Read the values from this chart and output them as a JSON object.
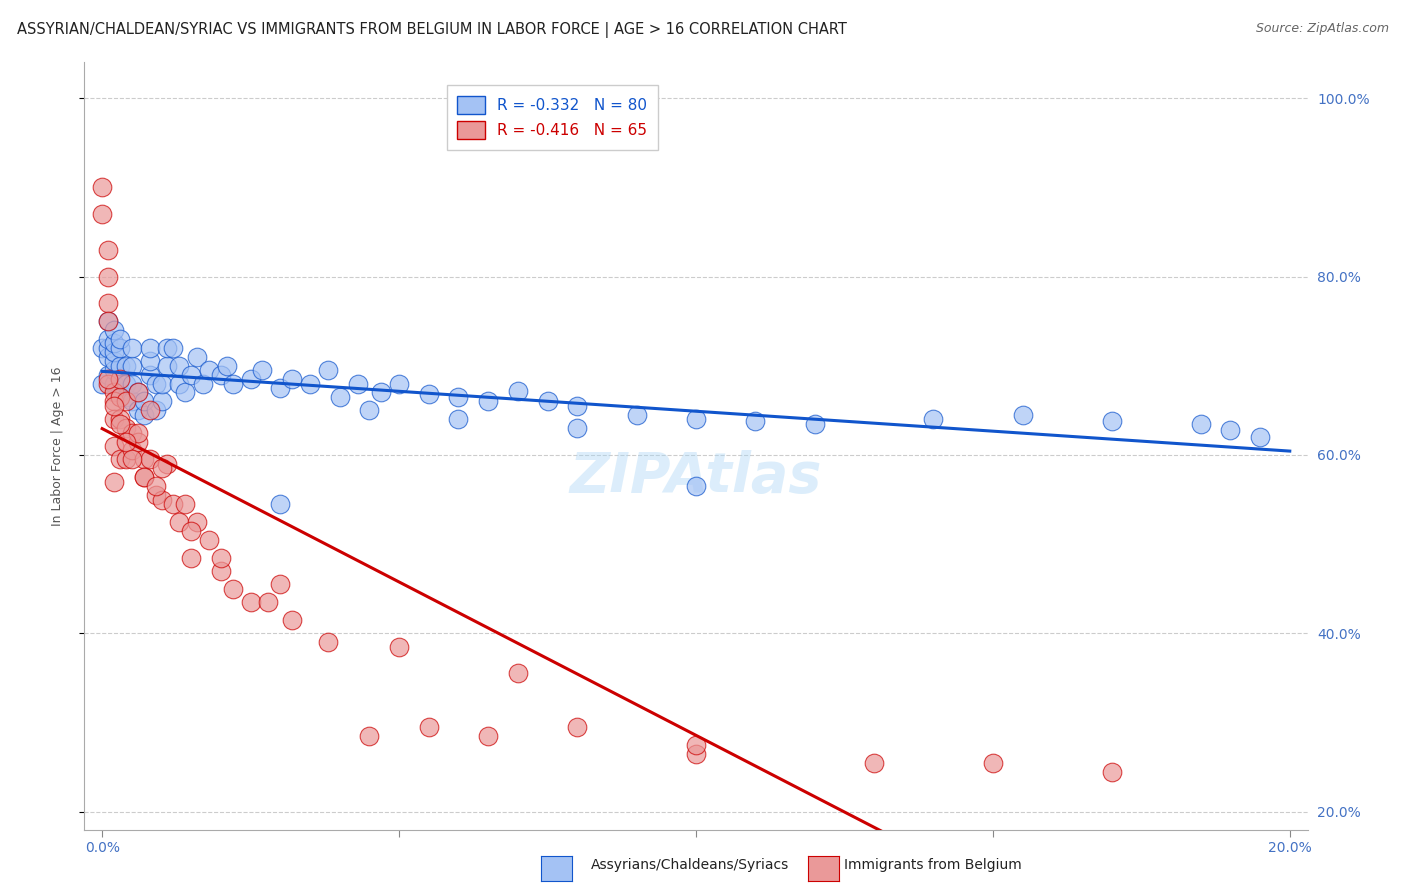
{
  "title": "ASSYRIAN/CHALDEAN/SYRIAC VS IMMIGRANTS FROM BELGIUM IN LABOR FORCE | AGE > 16 CORRELATION CHART",
  "source": "Source: ZipAtlas.com",
  "ylabel": "In Labor Force | Age > 16",
  "legend1_R": "-0.332",
  "legend1_N": "80",
  "legend2_R": "-0.416",
  "legend2_N": "65",
  "blue_color": "#a4c2f4",
  "pink_color": "#ea9999",
  "blue_line_color": "#1155cc",
  "pink_line_color": "#cc0000",
  "watermark": "ZIPAtlas",
  "blue_scatter_x": [
    0.0,
    0.0,
    0.001,
    0.001,
    0.001,
    0.001,
    0.001,
    0.002,
    0.002,
    0.002,
    0.002,
    0.002,
    0.002,
    0.003,
    0.003,
    0.003,
    0.003,
    0.003,
    0.004,
    0.004,
    0.004,
    0.005,
    0.005,
    0.005,
    0.005,
    0.006,
    0.006,
    0.007,
    0.007,
    0.008,
    0.008,
    0.008,
    0.009,
    0.009,
    0.01,
    0.01,
    0.011,
    0.011,
    0.012,
    0.013,
    0.013,
    0.014,
    0.015,
    0.016,
    0.017,
    0.018,
    0.02,
    0.021,
    0.022,
    0.025,
    0.027,
    0.03,
    0.032,
    0.035,
    0.038,
    0.04,
    0.043,
    0.047,
    0.05,
    0.055,
    0.06,
    0.065,
    0.07,
    0.075,
    0.08,
    0.09,
    0.1,
    0.11,
    0.12,
    0.14,
    0.155,
    0.17,
    0.185,
    0.195,
    0.03,
    0.045,
    0.06,
    0.08,
    0.1,
    0.19
  ],
  "blue_scatter_y": [
    0.68,
    0.72,
    0.69,
    0.71,
    0.72,
    0.73,
    0.75,
    0.68,
    0.695,
    0.705,
    0.715,
    0.725,
    0.74,
    0.67,
    0.685,
    0.7,
    0.72,
    0.73,
    0.665,
    0.68,
    0.7,
    0.66,
    0.68,
    0.7,
    0.72,
    0.65,
    0.67,
    0.645,
    0.66,
    0.69,
    0.705,
    0.72,
    0.65,
    0.68,
    0.66,
    0.68,
    0.7,
    0.72,
    0.72,
    0.7,
    0.68,
    0.67,
    0.69,
    0.71,
    0.68,
    0.695,
    0.69,
    0.7,
    0.68,
    0.685,
    0.695,
    0.675,
    0.685,
    0.68,
    0.695,
    0.665,
    0.68,
    0.67,
    0.68,
    0.668,
    0.665,
    0.66,
    0.672,
    0.66,
    0.655,
    0.645,
    0.64,
    0.638,
    0.635,
    0.64,
    0.645,
    0.638,
    0.635,
    0.62,
    0.545,
    0.65,
    0.64,
    0.63,
    0.565,
    0.628
  ],
  "pink_scatter_x": [
    0.0,
    0.0,
    0.001,
    0.001,
    0.001,
    0.001,
    0.001,
    0.002,
    0.002,
    0.002,
    0.002,
    0.002,
    0.003,
    0.003,
    0.003,
    0.004,
    0.004,
    0.004,
    0.005,
    0.005,
    0.006,
    0.006,
    0.007,
    0.007,
    0.008,
    0.008,
    0.009,
    0.01,
    0.011,
    0.012,
    0.013,
    0.014,
    0.015,
    0.016,
    0.018,
    0.02,
    0.022,
    0.025,
    0.028,
    0.032,
    0.038,
    0.045,
    0.055,
    0.065,
    0.08,
    0.1,
    0.13,
    0.003,
    0.006,
    0.01,
    0.015,
    0.02,
    0.03,
    0.05,
    0.07,
    0.1,
    0.15,
    0.17,
    0.001,
    0.002,
    0.003,
    0.004,
    0.005,
    0.007,
    0.009
  ],
  "pink_scatter_y": [
    0.9,
    0.87,
    0.83,
    0.8,
    0.77,
    0.75,
    0.68,
    0.67,
    0.66,
    0.64,
    0.61,
    0.57,
    0.665,
    0.64,
    0.595,
    0.66,
    0.63,
    0.595,
    0.625,
    0.605,
    0.67,
    0.615,
    0.595,
    0.575,
    0.65,
    0.595,
    0.555,
    0.55,
    0.59,
    0.545,
    0.525,
    0.545,
    0.485,
    0.525,
    0.505,
    0.47,
    0.45,
    0.435,
    0.435,
    0.415,
    0.39,
    0.285,
    0.295,
    0.285,
    0.295,
    0.265,
    0.255,
    0.685,
    0.625,
    0.585,
    0.515,
    0.485,
    0.455,
    0.385,
    0.355,
    0.275,
    0.255,
    0.245,
    0.685,
    0.655,
    0.635,
    0.615,
    0.595,
    0.575,
    0.565
  ],
  "xlim": [
    -0.003,
    0.203
  ],
  "ylim": [
    0.18,
    1.04
  ],
  "xticks": [
    0.0,
    0.05,
    0.1,
    0.15,
    0.2
  ],
  "yticks": [
    0.2,
    0.4,
    0.6,
    0.8,
    1.0
  ],
  "ytick_labels": [
    "20.0%",
    "40.0%",
    "60.0%",
    "80.0%",
    "100.0%"
  ],
  "xtick_labels_show": [
    "0.0%",
    "",
    "",
    "",
    "20.0%"
  ],
  "grid_color": "#cccccc",
  "background_color": "#ffffff",
  "title_fontsize": 10.5,
  "axis_label_fontsize": 9,
  "tick_fontsize": 10,
  "source_fontsize": 9,
  "watermark_fontsize": 40
}
